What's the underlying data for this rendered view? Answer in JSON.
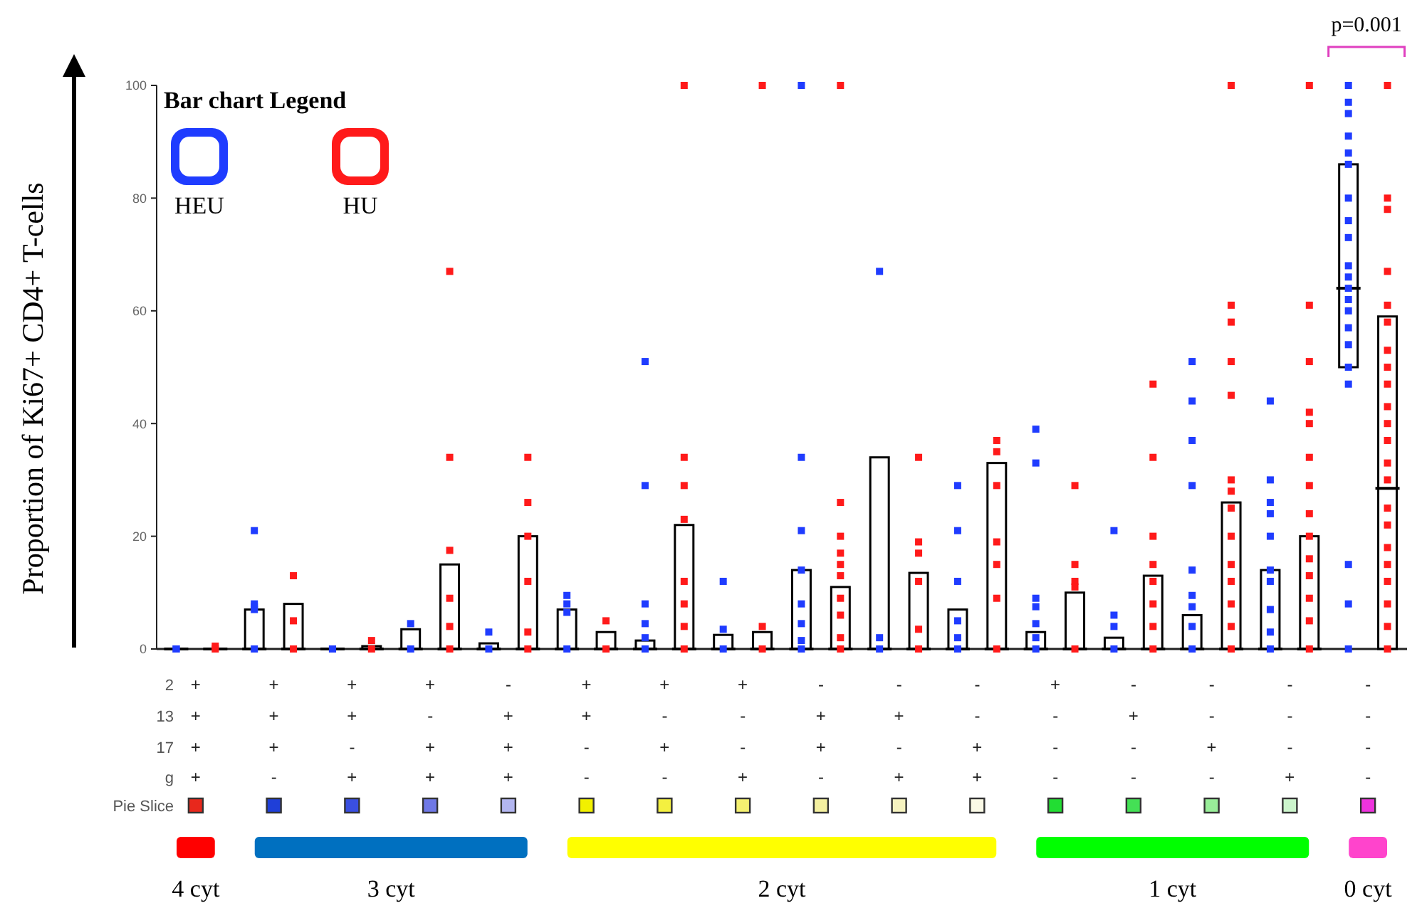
{
  "chart_data": {
    "type": "box",
    "ylabel": "Proportion of Ki67+ CD4+ T-cells",
    "legend_title": "Bar chart Legend",
    "legend": "top left",
    "marker": "square",
    "categories": [
      "++++",
      "+++-",
      "++-+",
      "+-++",
      "-+++",
      "++--",
      "+-+-",
      "+--+",
      "-++-",
      "-+-+",
      "--++",
      "+---",
      "-+--",
      "--+-",
      "---+",
      "----"
    ],
    "ylim": [
      0,
      100
    ],
    "yticks": [
      0,
      20,
      40,
      60,
      80,
      100
    ],
    "annotations": [
      "2",
      "13",
      "17",
      "g",
      "Pie Slice",
      "4 cyt",
      "3 cyt",
      "2 cyt",
      "1 cyt",
      "0 cyt",
      "p=0.001"
    ],
    "series": [
      {
        "color": "#000000",
        "boxes": [
          {
            "low": 0,
            "q1": 0,
            "median": 0,
            "q3": 0,
            "high": 0
          },
          {
            "low": 0,
            "q1": 0,
            "median": 0,
            "q3": 7,
            "high": 7
          },
          {
            "low": 0,
            "q1": 0,
            "median": 0,
            "q3": 0,
            "high": 0
          },
          {
            "low": 0,
            "q1": 0,
            "median": 0,
            "q3": 3.5,
            "high": 3.5
          },
          {
            "low": 0,
            "q1": 0,
            "median": 0,
            "q3": 1,
            "high": 1
          },
          {
            "low": 0,
            "q1": 0,
            "median": 0,
            "q3": 7,
            "high": 7
          },
          {
            "low": 0,
            "q1": 0,
            "median": 0,
            "q3": 1.5,
            "high": 1.5
          },
          {
            "low": 0,
            "q1": 0,
            "median": 0,
            "q3": 2.5,
            "high": 2.5
          },
          {
            "low": 0,
            "q1": 0,
            "median": 0,
            "q3": 14,
            "high": 14
          },
          {
            "low": 0,
            "q1": 0,
            "median": 0,
            "q3": 34,
            "high": 34
          },
          {
            "low": 0,
            "q1": 0,
            "median": 0,
            "q3": 7,
            "high": 7
          },
          {
            "low": 0,
            "q1": 0,
            "median": 0,
            "q3": 3,
            "high": 3
          },
          {
            "low": 0,
            "q1": 0,
            "median": 0,
            "q3": 2,
            "high": 2
          },
          {
            "low": 0,
            "q1": 0,
            "median": 0,
            "q3": 6,
            "high": 6
          },
          {
            "low": 0,
            "q1": 0,
            "median": 0,
            "q3": 14,
            "high": 14
          },
          {
            "low": 50,
            "q1": 50,
            "median": 64,
            "q3": 86,
            "high": 86
          }
        ]
      },
      {
        "color": "#000000",
        "boxes": [
          {
            "low": 0,
            "q1": 0,
            "median": 0,
            "q3": 0,
            "high": 0
          },
          {
            "low": 0,
            "q1": 0,
            "median": 0,
            "q3": 8,
            "high": 8
          },
          {
            "low": 0,
            "q1": 0,
            "median": 0,
            "q3": 0.5,
            "high": 0.5
          },
          {
            "low": 0,
            "q1": 0,
            "median": 0,
            "q3": 15,
            "high": 15
          },
          {
            "low": 0,
            "q1": 0,
            "median": 0,
            "q3": 20,
            "high": 20
          },
          {
            "low": 0,
            "q1": 0,
            "median": 0,
            "q3": 3,
            "high": 3
          },
          {
            "low": 0,
            "q1": 0,
            "median": 0,
            "q3": 22,
            "high": 22
          },
          {
            "low": 0,
            "q1": 0,
            "median": 0,
            "q3": 3,
            "high": 3
          },
          {
            "low": 0,
            "q1": 0,
            "median": 0,
            "q3": 11,
            "high": 11
          },
          {
            "low": 0,
            "q1": 0,
            "median": 0,
            "q3": 13.5,
            "high": 13.5
          },
          {
            "low": 0,
            "q1": 0,
            "median": 0,
            "q3": 33,
            "high": 33
          },
          {
            "low": 0,
            "q1": 0,
            "median": 0,
            "q3": 10,
            "high": 10
          },
          {
            "low": 0,
            "q1": 0,
            "median": 0,
            "q3": 13,
            "high": 13
          },
          {
            "low": 0,
            "q1": 0,
            "median": 0,
            "q3": 26,
            "high": 26
          },
          {
            "low": 0,
            "q1": 0,
            "median": 0,
            "q3": 20,
            "high": 20
          },
          {
            "low": 0,
            "q1": 0,
            "median": 28.5,
            "q3": 59,
            "high": 59
          }
        ]
      },
      {
        "type": "scatter",
        "name": "HEU",
        "color": "#1f3cff",
        "x": [
          "++++",
          "++++",
          "+++-",
          "+++-",
          "+++-",
          "+++-",
          "+++-",
          "++-+",
          "++-+",
          "+-++",
          "+-++",
          "-+++",
          "-+++",
          "++--",
          "++--",
          "++--",
          "++--",
          "+-+-",
          "+-+-",
          "+-+-",
          "+-+-",
          "+-+-",
          "+-+-",
          "+--+",
          "+--+",
          "+--+",
          "-++-",
          "-++-",
          "-++-",
          "-++-",
          "-++-",
          "-++-",
          "-++-",
          "-++-",
          "-+-+",
          "-+-+",
          "-+-+",
          "--++",
          "--++",
          "--++",
          "--++",
          "--++",
          "--++",
          "+---",
          "+---",
          "+---",
          "+---",
          "+---",
          "+---",
          "+---",
          "-+--",
          "-+--",
          "-+--",
          "-+--",
          "--+-",
          "--+-",
          "--+-",
          "--+-",
          "--+-",
          "--+-",
          "--+-",
          "--+-",
          "--+-",
          "---+",
          "---+",
          "---+",
          "---+",
          "---+",
          "---+",
          "---+",
          "---+",
          "---+",
          "---+",
          "----",
          "----",
          "----",
          "----",
          "----",
          "----",
          "----",
          "----",
          "----",
          "----",
          "----",
          "----",
          "----",
          "----",
          "----",
          "----",
          "----",
          "----",
          "----",
          "----",
          "----"
        ],
        "values": [
          0,
          0,
          21,
          8,
          7.5,
          7,
          0,
          0,
          0,
          4.5,
          0,
          3,
          0,
          9.5,
          8,
          6.5,
          0,
          51,
          29,
          8,
          4.5,
          2,
          0,
          12,
          3.5,
          0,
          100,
          34,
          21,
          14,
          8,
          4.5,
          1.5,
          0,
          67,
          2,
          0,
          29,
          21,
          12,
          5,
          2,
          0,
          39,
          33,
          9,
          7.5,
          4.5,
          2,
          0,
          21,
          6,
          4,
          0,
          51,
          44,
          37,
          29,
          14,
          9.5,
          7.5,
          4,
          0,
          44,
          30,
          26,
          24,
          20,
          14,
          12,
          7,
          3,
          0,
          100,
          97,
          95,
          91,
          88,
          86,
          80,
          76,
          73,
          68,
          66,
          64,
          62,
          60,
          57,
          54,
          50,
          47,
          15,
          8,
          0
        ]
      },
      {
        "type": "scatter",
        "name": "HU",
        "color": "#ff1a1a",
        "x": [
          "++++",
          "++++",
          "+++-",
          "+++-",
          "+++-",
          "++-+",
          "++-+",
          "+-++",
          "+-++",
          "+-++",
          "+-++",
          "+-++",
          "+-++",
          "-+++",
          "-+++",
          "-+++",
          "-+++",
          "-+++",
          "-+++",
          "++--",
          "++--",
          "+-+-",
          "+-+-",
          "+-+-",
          "+-+-",
          "+-+-",
          "+-+-",
          "+-+-",
          "+-+-",
          "+--+",
          "+--+",
          "+--+",
          "-++-",
          "-++-",
          "-++-",
          "-++-",
          "-++-",
          "-++-",
          "-++-",
          "-++-",
          "-++-",
          "-++-",
          "-+-+",
          "-+-+",
          "-+-+",
          "-+-+",
          "-+-+",
          "-+-+",
          "--++",
          "--++",
          "--++",
          "--++",
          "--++",
          "--++",
          "--++",
          "+---",
          "+---",
          "+---",
          "+---",
          "+---",
          "-+--",
          "-+--",
          "-+--",
          "-+--",
          "-+--",
          "-+--",
          "-+--",
          "-+--",
          "--+-",
          "--+-",
          "--+-",
          "--+-",
          "--+-",
          "--+-",
          "--+-",
          "--+-",
          "--+-",
          "--+-",
          "--+-",
          "--+-",
          "--+-",
          "--+-",
          "---+",
          "---+",
          "---+",
          "---+",
          "---+",
          "---+",
          "---+",
          "---+",
          "---+",
          "---+",
          "---+",
          "---+",
          "---+",
          "---+",
          "----",
          "----",
          "----",
          "----",
          "----",
          "----",
          "----",
          "----",
          "----",
          "----",
          "----",
          "----",
          "----",
          "----",
          "----",
          "----",
          "----",
          "----",
          "----",
          "----",
          "----",
          "----"
        ],
        "values": [
          0.5,
          0,
          13,
          5,
          0,
          1.5,
          0,
          67,
          34,
          17.5,
          9,
          4,
          0,
          34,
          26,
          20,
          12,
          3,
          0,
          5,
          0,
          100,
          34,
          29,
          23,
          12,
          8,
          4,
          0,
          100,
          4,
          0,
          100,
          26,
          20,
          17,
          15,
          13,
          9,
          6,
          2,
          0,
          34,
          19,
          17,
          12,
          3.5,
          0,
          37,
          35,
          29,
          19,
          15,
          9,
          0,
          29,
          15,
          12,
          11,
          0,
          47,
          34,
          20,
          15,
          12,
          8,
          4,
          0,
          100,
          61,
          58,
          51,
          45,
          30,
          28,
          25,
          20,
          15,
          12,
          8,
          4,
          0,
          100,
          61,
          51,
          42,
          40,
          34,
          29,
          24,
          20,
          16,
          13,
          9,
          5,
          0,
          100,
          80,
          78,
          67,
          61,
          58,
          53,
          50,
          47,
          43,
          40,
          37,
          33,
          30,
          25,
          22,
          18,
          15,
          12,
          8,
          4,
          0
        ]
      }
    ]
  }
}
